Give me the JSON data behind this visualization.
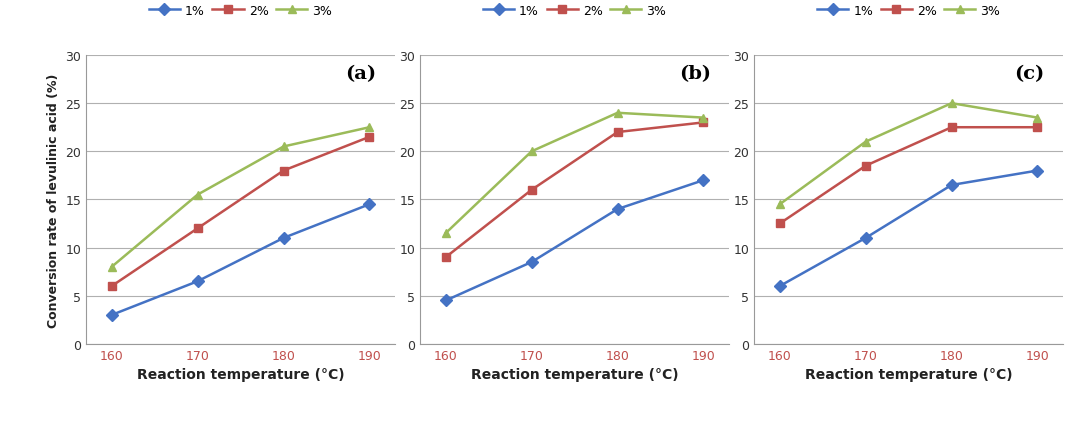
{
  "x": [
    160,
    170,
    180,
    190
  ],
  "panels": [
    {
      "label": "(a)",
      "series": {
        "1%": [
          3,
          6.5,
          11,
          14.5
        ],
        "2%": [
          6,
          12,
          18,
          21.5
        ],
        "3%": [
          8,
          15.5,
          20.5,
          22.5
        ]
      }
    },
    {
      "label": "(b)",
      "series": {
        "1%": [
          4.5,
          8.5,
          14,
          17
        ],
        "2%": [
          9,
          16,
          22,
          23
        ],
        "3%": [
          11.5,
          20,
          24,
          23.5
        ]
      }
    },
    {
      "label": "(c)",
      "series": {
        "1%": [
          6,
          11,
          16.5,
          18
        ],
        "2%": [
          12.5,
          18.5,
          22.5,
          22.5
        ],
        "3%": [
          14.5,
          21,
          25,
          23.5
        ]
      }
    }
  ],
  "colors": {
    "1%": "#4472C4",
    "2%": "#C0504D",
    "3%": "#9BBB59"
  },
  "markers": {
    "1%": "D",
    "2%": "s",
    "3%": "^"
  },
  "ylabel": "Conversion rate of levulinic acid (%)",
  "xlabel": "Reaction temperature (°C)",
  "ylim": [
    0,
    30
  ],
  "yticks": [
    0,
    5,
    10,
    15,
    20,
    25,
    30
  ],
  "xticks": [
    160,
    170,
    180,
    190
  ],
  "legend_labels": [
    "1%",
    "2%",
    "3%"
  ],
  "background_color": "#ffffff",
  "grid_color": "#b0b0b0",
  "tick_label_color": "#333333",
  "x_tick_color": "#C0504D",
  "axis_label_fontsize": 10,
  "tick_fontsize": 9,
  "panel_label_fontsize": 14,
  "legend_fontsize": 9,
  "line_width": 1.8,
  "marker_size": 6
}
